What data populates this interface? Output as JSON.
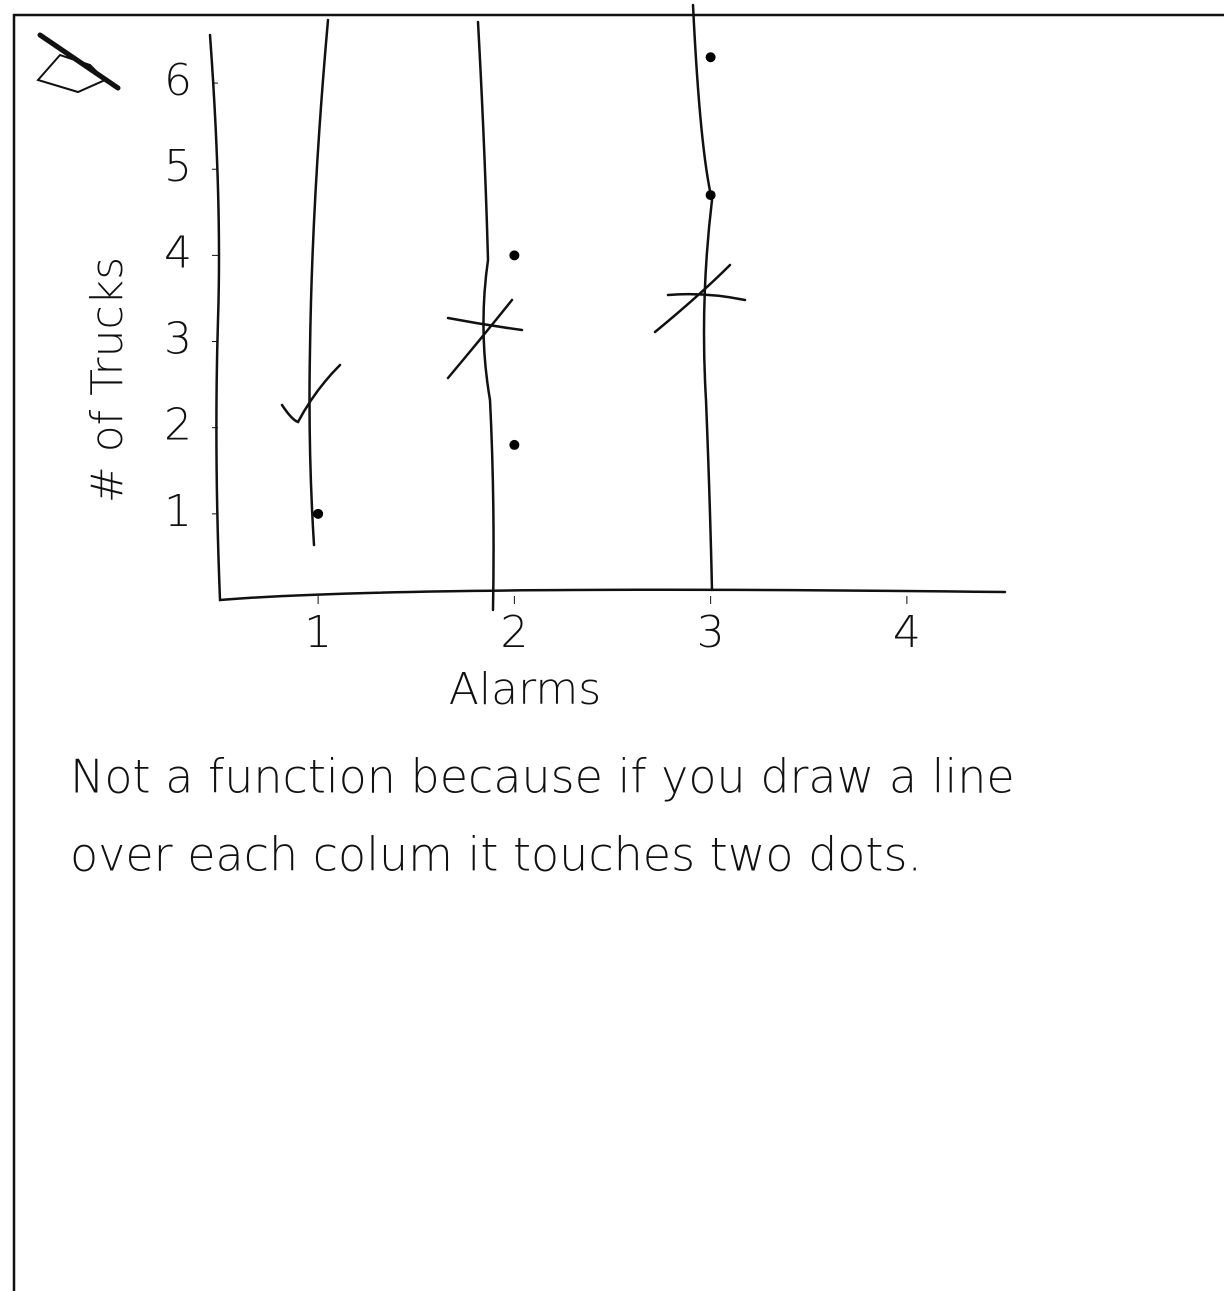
{
  "chart_data": {
    "type": "scatter",
    "xlabel": "Alarms",
    "ylabel": "# of Trucks",
    "x": [
      1,
      2,
      2,
      3,
      3
    ],
    "values": [
      1,
      4,
      1.8,
      4.7,
      6.3
    ],
    "color": "#000000",
    "xlim": [
      0.5,
      4.5
    ],
    "xticks": [
      1,
      2,
      3,
      4
    ],
    "ylim": [
      0,
      6.5
    ],
    "yticks": [
      1,
      2,
      3,
      4,
      5,
      6
    ],
    "grid": false,
    "annotation": [
      "Not a function because if you draw a line",
      "over each colum it touches two dots."
    ]
  }
}
